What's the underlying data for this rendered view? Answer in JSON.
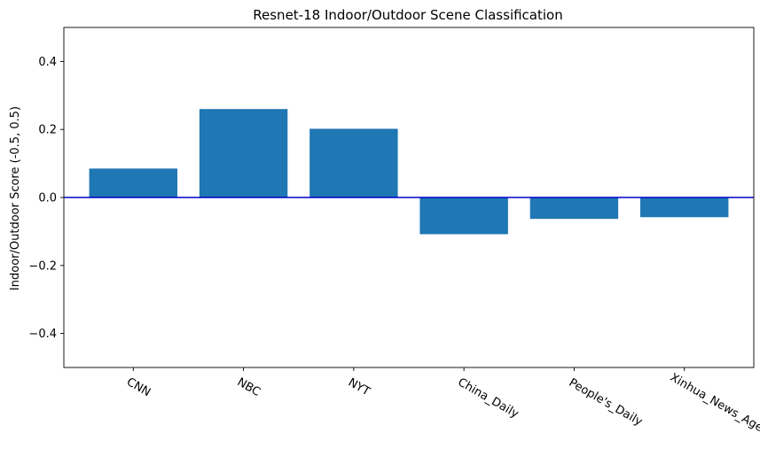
{
  "chart_data": {
    "type": "bar",
    "title": "Resnet-18 Indoor/Outdoor Scene Classification",
    "xlabel": "",
    "ylabel": "Indoor/Outdoor Score (-0.5, 0.5)",
    "categories": [
      "CNN",
      "NBC",
      "NYT",
      "China_Daily",
      "People's_Daily",
      "Xinhua_News_Agency"
    ],
    "values": [
      0.085,
      0.26,
      0.202,
      -0.108,
      -0.063,
      -0.058
    ],
    "ylim": [
      -0.5,
      0.5
    ],
    "yticks": [
      -0.4,
      -0.2,
      0.0,
      0.2,
      0.4
    ],
    "ytick_labels": [
      "−0.4",
      "−0.2",
      "0.0",
      "0.2",
      "0.4"
    ],
    "bar_color": "#1f77b4",
    "reference_line": {
      "y": 0.0,
      "color": "#0000cc"
    },
    "grid": false,
    "legend": "none"
  }
}
